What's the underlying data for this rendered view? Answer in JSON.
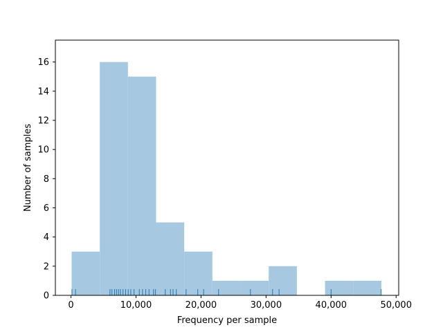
{
  "chart_data": {
    "type": "bar",
    "subtype": "histogram-with-rug",
    "xlabel": "Frequency per sample",
    "ylabel": "Number of samples",
    "xlim": [
      -2400,
      50400
    ],
    "ylim": [
      0,
      17.5
    ],
    "grid": false,
    "bar_color": "#a6c8e0",
    "rug_color": "#1f77b4",
    "bins": [
      {
        "x0": 100,
        "x1": 4430,
        "count": 3
      },
      {
        "x0": 4430,
        "x1": 8760,
        "count": 16
      },
      {
        "x0": 8760,
        "x1": 13090,
        "count": 15
      },
      {
        "x0": 13090,
        "x1": 17420,
        "count": 5
      },
      {
        "x0": 17420,
        "x1": 21750,
        "count": 3
      },
      {
        "x0": 21750,
        "x1": 26080,
        "count": 1
      },
      {
        "x0": 26080,
        "x1": 30410,
        "count": 1
      },
      {
        "x0": 30410,
        "x1": 34740,
        "count": 2
      },
      {
        "x0": 34740,
        "x1": 39070,
        "count": 0
      },
      {
        "x0": 39070,
        "x1": 43400,
        "count": 1
      },
      {
        "x0": 43400,
        "x1": 47730,
        "count": 1
      }
    ],
    "rug": [
      150,
      700,
      6000,
      6300,
      6700,
      7000,
      7300,
      7600,
      8000,
      8400,
      8800,
      9200,
      9700,
      10500,
      11000,
      11500,
      12000,
      12700,
      13000,
      14500,
      15300,
      15700,
      16200,
      17700,
      19500,
      20400,
      22700,
      27600,
      31000,
      32000,
      40000,
      47700
    ],
    "x_ticks": [
      {
        "value": 0,
        "label": "0"
      },
      {
        "value": 10000,
        "label": "10,000"
      },
      {
        "value": 20000,
        "label": "20,000"
      },
      {
        "value": 30000,
        "label": "30,000"
      },
      {
        "value": 40000,
        "label": "40,000"
      },
      {
        "value": 50000,
        "label": "50,000"
      }
    ],
    "y_ticks": [
      {
        "value": 0,
        "label": "0"
      },
      {
        "value": 2,
        "label": "2"
      },
      {
        "value": 4,
        "label": "4"
      },
      {
        "value": 6,
        "label": "6"
      },
      {
        "value": 8,
        "label": "8"
      },
      {
        "value": 10,
        "label": "10"
      },
      {
        "value": 12,
        "label": "12"
      },
      {
        "value": 14,
        "label": "14"
      },
      {
        "value": 16,
        "label": "16"
      }
    ]
  }
}
